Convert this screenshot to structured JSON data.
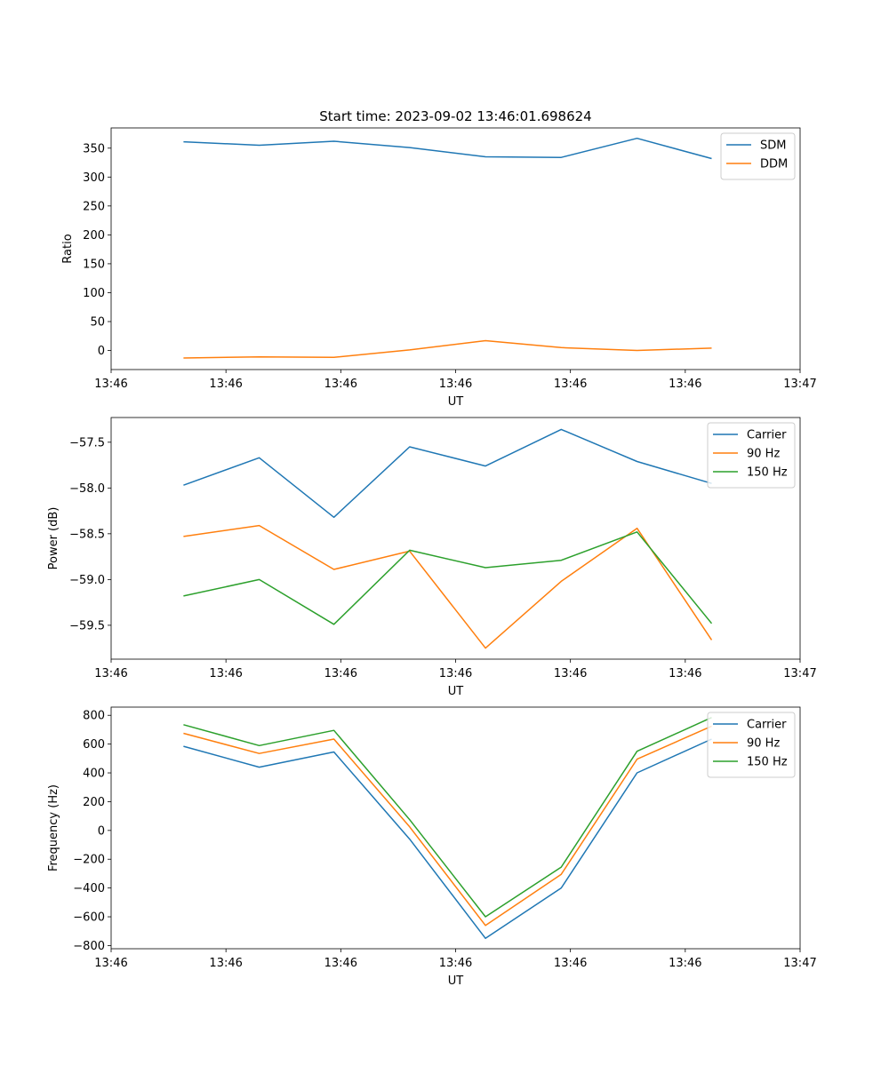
{
  "figure_title": "Start time: 2023-09-02 13:46:01.698624",
  "colors": {
    "series1": "#1f77b4",
    "series2": "#ff7f0e",
    "series3": "#2ca02c"
  },
  "chart_data": [
    {
      "type": "line",
      "title": "Start time: 2023-09-02 13:46:01.698624",
      "xlabel": "UT",
      "ylabel": "Ratio",
      "x": [
        0.63,
        1.29,
        1.94,
        2.6,
        3.26,
        3.92,
        4.58,
        5.23
      ],
      "xlim": [
        0,
        6
      ],
      "xticks": [
        0,
        1,
        2,
        3,
        4,
        5,
        6
      ],
      "xtick_labels": [
        "13:46",
        "13:46",
        "13:46",
        "13:46",
        "13:46",
        "13:46",
        "13:47"
      ],
      "ylim": [
        -33,
        385
      ],
      "yticks": [
        0,
        50,
        100,
        150,
        200,
        250,
        300,
        350
      ],
      "ytick_labels": [
        "0",
        "50",
        "100",
        "150",
        "200",
        "250",
        "300",
        "350"
      ],
      "legend_position": "top-right",
      "series": [
        {
          "name": "SDM",
          "color": "#1f77b4",
          "values": [
            361,
            355,
            362,
            351,
            335,
            334,
            367,
            332
          ]
        },
        {
          "name": "DDM",
          "color": "#ff7f0e",
          "values": [
            -13,
            -11,
            -12,
            1,
            17,
            5,
            0,
            4
          ]
        }
      ]
    },
    {
      "type": "line",
      "title": "",
      "xlabel": "UT",
      "ylabel": "Power (dB)",
      "x": [
        0.63,
        1.29,
        1.94,
        2.6,
        3.26,
        3.92,
        4.58,
        5.23
      ],
      "xlim": [
        0,
        6
      ],
      "xticks": [
        0,
        1,
        2,
        3,
        4,
        5,
        6
      ],
      "xtick_labels": [
        "13:46",
        "13:46",
        "13:46",
        "13:46",
        "13:46",
        "13:46",
        "13:47"
      ],
      "ylim": [
        -59.87,
        -57.23
      ],
      "yticks": [
        -59.5,
        -59.0,
        -58.5,
        -58.0,
        -57.5
      ],
      "ytick_labels": [
        "−59.5",
        "−59.0",
        "−58.5",
        "−58.0",
        "−57.5"
      ],
      "legend_position": "top-right",
      "series": [
        {
          "name": "Carrier",
          "color": "#1f77b4",
          "values": [
            -57.97,
            -57.67,
            -58.32,
            -57.55,
            -57.76,
            -57.36,
            -57.71,
            -57.95
          ]
        },
        {
          "name": "90 Hz",
          "color": "#ff7f0e",
          "values": [
            -58.53,
            -58.41,
            -58.89,
            -58.69,
            -59.75,
            -59.02,
            -58.44,
            -59.66
          ]
        },
        {
          "name": "150 Hz",
          "color": "#2ca02c",
          "values": [
            -59.18,
            -59.0,
            -59.49,
            -58.68,
            -58.87,
            -58.79,
            -58.48,
            -59.48
          ]
        }
      ]
    },
    {
      "type": "line",
      "title": "",
      "xlabel": "UT",
      "ylabel": "Frequency (Hz)",
      "x": [
        0.63,
        1.29,
        1.94,
        2.6,
        3.26,
        3.92,
        4.58,
        5.23
      ],
      "xlim": [
        0,
        6
      ],
      "xticks": [
        0,
        1,
        2,
        3,
        4,
        5,
        6
      ],
      "xtick_labels": [
        "13:46",
        "13:46",
        "13:46",
        "13:46",
        "13:46",
        "13:46",
        "13:47"
      ],
      "ylim": [
        -822,
        857
      ],
      "yticks": [
        -800,
        -600,
        -400,
        -200,
        0,
        200,
        400,
        600,
        800
      ],
      "ytick_labels": [
        "−800",
        "−600",
        "−400",
        "−200",
        "0",
        "200",
        "400",
        "600",
        "800"
      ],
      "legend_position": "top-right",
      "series": [
        {
          "name": "Carrier",
          "color": "#1f77b4",
          "values": [
            585,
            440,
            545,
            -60,
            -750,
            -400,
            400,
            635
          ]
        },
        {
          "name": "90 Hz",
          "color": "#ff7f0e",
          "values": [
            675,
            535,
            635,
            25,
            -660,
            -305,
            495,
            725
          ]
        },
        {
          "name": "150 Hz",
          "color": "#2ca02c",
          "values": [
            735,
            590,
            695,
            75,
            -600,
            -255,
            550,
            785
          ]
        }
      ]
    }
  ]
}
